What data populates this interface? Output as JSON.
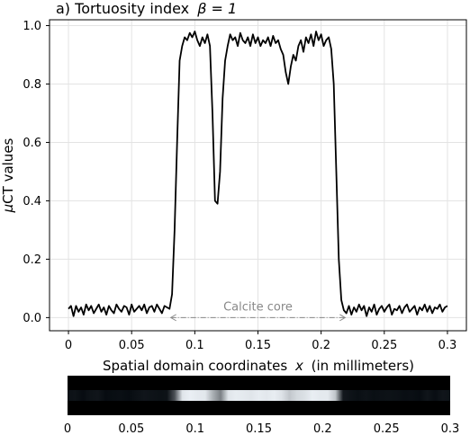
{
  "chart_data": {
    "type": "line",
    "title": "a) Tortuosity index",
    "title_math": "β = 1",
    "ylabel_math": "μ",
    "ylabel": "CT values",
    "xlabel_prefix": "Spatial domain coordinates",
    "xlabel_var": "x",
    "xlabel_suffix": "(in millimeters)",
    "xlim": [
      -0.015,
      0.315
    ],
    "ylim": [
      -0.045,
      1.02
    ],
    "xticks": [
      0,
      0.05,
      0.1,
      0.15,
      0.2,
      0.25,
      0.3
    ],
    "xtick_labels": [
      "0",
      "0.05",
      "0.1",
      "0.15",
      "0.2",
      "0.25",
      "0.3"
    ],
    "yticks": [
      0.0,
      0.2,
      0.4,
      0.6,
      0.8,
      1.0
    ],
    "ytick_labels": [
      "0.0",
      "0.2",
      "0.4",
      "0.6",
      "0.8",
      "1.0"
    ],
    "grid": true,
    "line_color": "#000000",
    "series": [
      {
        "x": [
          0.0,
          0.002,
          0.004,
          0.006,
          0.008,
          0.01,
          0.012,
          0.014,
          0.016,
          0.018,
          0.02,
          0.022,
          0.024,
          0.026,
          0.028,
          0.03,
          0.032,
          0.034,
          0.036,
          0.038,
          0.04,
          0.042,
          0.044,
          0.046,
          0.048,
          0.05,
          0.052,
          0.054,
          0.056,
          0.058,
          0.06,
          0.062,
          0.064,
          0.066,
          0.068,
          0.07,
          0.072,
          0.074,
          0.076,
          0.078,
          0.08,
          0.082,
          0.084,
          0.086,
          0.088,
          0.09,
          0.092,
          0.094,
          0.096,
          0.098,
          0.1,
          0.102,
          0.104,
          0.106,
          0.108,
          0.11,
          0.112,
          0.114,
          0.116,
          0.118,
          0.12,
          0.122,
          0.124,
          0.126,
          0.128,
          0.13,
          0.132,
          0.134,
          0.136,
          0.138,
          0.14,
          0.142,
          0.144,
          0.146,
          0.148,
          0.15,
          0.152,
          0.154,
          0.156,
          0.158,
          0.16,
          0.162,
          0.164,
          0.166,
          0.168,
          0.17,
          0.172,
          0.174,
          0.176,
          0.178,
          0.18,
          0.182,
          0.184,
          0.186,
          0.188,
          0.19,
          0.192,
          0.194,
          0.196,
          0.198,
          0.2,
          0.202,
          0.204,
          0.206,
          0.208,
          0.21,
          0.212,
          0.214,
          0.216,
          0.218,
          0.22,
          0.222,
          0.224,
          0.226,
          0.228,
          0.23,
          0.232,
          0.234,
          0.236,
          0.238,
          0.24,
          0.242,
          0.244,
          0.246,
          0.248,
          0.25,
          0.252,
          0.254,
          0.256,
          0.258,
          0.26,
          0.262,
          0.264,
          0.266,
          0.268,
          0.27,
          0.272,
          0.274,
          0.276,
          0.278,
          0.28,
          0.282,
          0.284,
          0.286,
          0.288,
          0.29,
          0.292,
          0.294,
          0.296,
          0.298,
          0.3
        ],
        "values": [
          0.03,
          0.04,
          0.005,
          0.04,
          0.02,
          0.035,
          0.01,
          0.045,
          0.025,
          0.04,
          0.015,
          0.03,
          0.045,
          0.02,
          0.035,
          0.01,
          0.04,
          0.025,
          0.015,
          0.045,
          0.03,
          0.02,
          0.04,
          0.035,
          0.01,
          0.045,
          0.02,
          0.03,
          0.04,
          0.025,
          0.045,
          0.015,
          0.035,
          0.04,
          0.02,
          0.045,
          0.03,
          0.015,
          0.04,
          0.035,
          0.03,
          0.08,
          0.3,
          0.6,
          0.88,
          0.93,
          0.96,
          0.95,
          0.975,
          0.96,
          0.98,
          0.95,
          0.93,
          0.96,
          0.94,
          0.97,
          0.93,
          0.7,
          0.4,
          0.39,
          0.5,
          0.75,
          0.88,
          0.93,
          0.97,
          0.95,
          0.96,
          0.93,
          0.975,
          0.95,
          0.94,
          0.96,
          0.93,
          0.97,
          0.94,
          0.96,
          0.93,
          0.95,
          0.94,
          0.96,
          0.93,
          0.965,
          0.94,
          0.95,
          0.92,
          0.9,
          0.84,
          0.8,
          0.86,
          0.9,
          0.88,
          0.93,
          0.95,
          0.91,
          0.96,
          0.94,
          0.97,
          0.93,
          0.98,
          0.95,
          0.97,
          0.93,
          0.95,
          0.96,
          0.92,
          0.8,
          0.5,
          0.2,
          0.06,
          0.025,
          0.015,
          0.04,
          0.01,
          0.035,
          0.02,
          0.045,
          0.025,
          0.04,
          0.005,
          0.035,
          0.02,
          0.045,
          0.01,
          0.03,
          0.04,
          0.02,
          0.035,
          0.045,
          0.01,
          0.03,
          0.025,
          0.04,
          0.015,
          0.035,
          0.045,
          0.02,
          0.03,
          0.04,
          0.01,
          0.035,
          0.025,
          0.045,
          0.02,
          0.04,
          0.015,
          0.035,
          0.03,
          0.045,
          0.02,
          0.035,
          0.04
        ]
      }
    ],
    "annotation": {
      "text": "Calcite core",
      "x_start": 0.081,
      "x_end": 0.219,
      "y": 0.0
    },
    "strip": {
      "xticks": [
        0,
        0.05,
        0.1,
        0.15,
        0.2,
        0.25,
        0.3
      ],
      "xtick_labels": [
        "0",
        "0.05",
        "0.1",
        "0.15",
        "0.2",
        "0.25",
        "0.3"
      ],
      "bright_range": [
        0.085,
        0.215
      ]
    }
  }
}
